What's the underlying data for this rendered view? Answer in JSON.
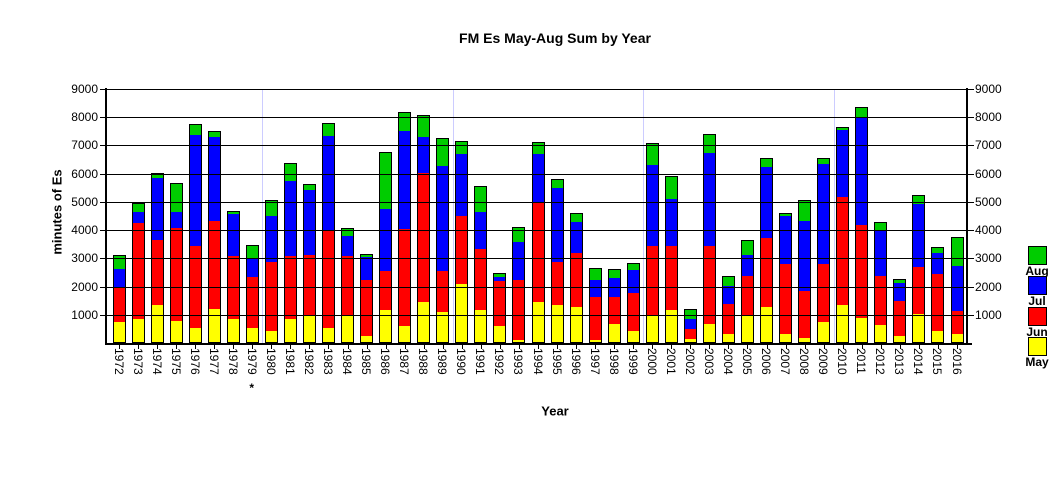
{
  "chart_data": {
    "type": "bar",
    "stacked": true,
    "title": "FM Es May-Aug Sum by Year",
    "ylabel": "minutes of Es",
    "xlabel": "Year",
    "ylim": [
      0,
      9000
    ],
    "y_ticks": [
      1000,
      2000,
      3000,
      4000,
      5000,
      6000,
      7000,
      8000,
      9000
    ],
    "grid": "horizontal-black-per-1000",
    "legend_position": "right",
    "legend_order": [
      "Aug",
      "Jul",
      "Jun",
      "May"
    ],
    "categories": [
      "1972",
      "1973",
      "1974",
      "1975",
      "1976",
      "1977",
      "1978",
      "1979",
      "1980",
      "1981",
      "1982",
      "1983",
      "1984",
      "1985",
      "1986",
      "1987",
      "1988",
      "1989",
      "1990",
      "1991",
      "1992",
      "1993",
      "1994",
      "1995",
      "1996",
      "1997",
      "1998",
      "1999",
      "2000",
      "2001",
      "2002",
      "2003",
      "2004",
      "2005",
      "2006",
      "2007",
      "2008",
      "2009",
      "2010",
      "2011",
      "2012",
      "2013",
      "2014",
      "2015",
      "2016"
    ],
    "series": [
      {
        "name": "May",
        "color": "#FFFF00",
        "values": [
          700,
          800,
          1300,
          750,
          500,
          1150,
          800,
          500,
          400,
          800,
          950,
          480,
          950,
          200,
          1150,
          560,
          1400,
          1050,
          2050,
          1150,
          550,
          80,
          1400,
          1300,
          1250,
          80,
          650,
          380,
          950,
          1150,
          100,
          650,
          300,
          950,
          1250,
          300,
          150,
          700,
          1300,
          850,
          600,
          200,
          1000,
          400,
          300
        ]
      },
      {
        "name": "Jun",
        "color": "#FF0000",
        "values": [
          1250,
          3400,
          2300,
          3300,
          2900,
          3150,
          2250,
          1800,
          2450,
          2250,
          2150,
          3450,
          2100,
          2000,
          1350,
          3450,
          4600,
          1450,
          2400,
          2150,
          1600,
          2100,
          3550,
          1550,
          1900,
          1500,
          950,
          1350,
          2450,
          2250,
          350,
          2750,
          1050,
          1380,
          2450,
          2450,
          1650,
          2050,
          3850,
          3300,
          1750,
          1250,
          1650,
          2000,
          800
        ]
      },
      {
        "name": "Jul",
        "color": "#0000FF",
        "values": [
          650,
          400,
          2200,
          550,
          3950,
          2950,
          1500,
          650,
          1600,
          2650,
          2300,
          3350,
          700,
          800,
          2200,
          3450,
          1250,
          3750,
          2200,
          1300,
          150,
          1350,
          1700,
          2600,
          1100,
          620,
          650,
          830,
          2880,
          1650,
          350,
          3300,
          620,
          750,
          2500,
          1700,
          2500,
          3550,
          2350,
          3800,
          1600,
          650,
          2250,
          750,
          1600
        ]
      },
      {
        "name": "Aug",
        "color": "#00CC00",
        "values": [
          450,
          280,
          150,
          1000,
          350,
          200,
          60,
          450,
          550,
          600,
          150,
          450,
          250,
          100,
          2000,
          650,
          750,
          950,
          450,
          900,
          120,
          500,
          400,
          300,
          280,
          400,
          300,
          220,
          720,
          800,
          350,
          650,
          330,
          500,
          300,
          80,
          700,
          200,
          100,
          350,
          280,
          100,
          280,
          200,
          1000
        ]
      }
    ],
    "footnote": {
      "year": "1979",
      "marker": "*"
    },
    "vertical_guides": {
      "years": [
        "1980",
        "1990",
        "2000",
        "2010"
      ],
      "color": "#CCCCFF"
    }
  }
}
